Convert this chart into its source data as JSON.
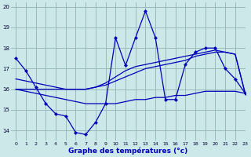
{
  "xlabel": "Graphe des températures (°c)",
  "bg_color": "#cce8e8",
  "line_color": "#0000bb",
  "grid_color": "#99bbbb",
  "xlim": [
    -0.5,
    23
  ],
  "ylim": [
    13.5,
    20.2
  ],
  "yticks": [
    14,
    15,
    16,
    17,
    18,
    19,
    20
  ],
  "xticks": [
    0,
    1,
    2,
    3,
    4,
    5,
    6,
    7,
    8,
    9,
    10,
    11,
    12,
    13,
    14,
    15,
    16,
    17,
    18,
    19,
    20,
    21,
    22,
    23
  ],
  "series_jagged_x": [
    0,
    1,
    2,
    3,
    4,
    5,
    6,
    7,
    8,
    9,
    10,
    11,
    12,
    13,
    14,
    15,
    16,
    17,
    18,
    19,
    20,
    21,
    22,
    23
  ],
  "series_jagged_y": [
    17.5,
    16.9,
    16.1,
    15.3,
    14.8,
    14.7,
    13.9,
    13.8,
    14.4,
    15.3,
    18.5,
    17.15,
    18.5,
    19.8,
    18.5,
    15.5,
    15.5,
    17.2,
    17.8,
    18.0,
    18.0,
    17.0,
    16.5,
    15.8
  ],
  "series_low_flat_x": [
    0,
    1,
    2,
    3,
    4,
    5,
    6,
    7,
    8,
    9,
    10,
    11,
    12,
    13,
    14,
    15,
    16,
    17,
    18,
    19,
    20,
    21,
    22,
    23
  ],
  "series_low_flat_y": [
    16.0,
    15.9,
    15.8,
    15.7,
    15.6,
    15.5,
    15.4,
    15.3,
    15.3,
    15.3,
    15.3,
    15.4,
    15.5,
    15.5,
    15.6,
    15.6,
    15.7,
    15.7,
    15.8,
    15.9,
    15.9,
    15.9,
    15.9,
    15.8
  ],
  "series_mid_rise1_x": [
    0,
    1,
    2,
    3,
    4,
    5,
    6,
    7,
    8,
    9,
    10,
    11,
    12,
    13,
    14,
    15,
    16,
    17,
    18,
    19,
    20,
    21,
    22,
    23
  ],
  "series_mid_rise1_y": [
    16.0,
    16.0,
    16.0,
    16.0,
    16.0,
    16.0,
    16.0,
    16.0,
    16.1,
    16.2,
    16.4,
    16.6,
    16.8,
    17.0,
    17.1,
    17.2,
    17.3,
    17.4,
    17.6,
    17.7,
    17.8,
    17.8,
    17.7,
    15.8
  ],
  "series_mid_rise2_x": [
    0,
    1,
    2,
    3,
    4,
    5,
    6,
    7,
    8,
    9,
    10,
    11,
    12,
    13,
    14,
    15,
    16,
    17,
    18,
    19,
    20,
    21,
    22,
    23
  ],
  "series_mid_rise2_y": [
    16.5,
    16.4,
    16.3,
    16.2,
    16.1,
    16.0,
    16.0,
    16.0,
    16.1,
    16.3,
    16.6,
    16.9,
    17.1,
    17.2,
    17.3,
    17.4,
    17.5,
    17.6,
    17.7,
    17.8,
    17.9,
    17.8,
    17.7,
    15.8
  ]
}
